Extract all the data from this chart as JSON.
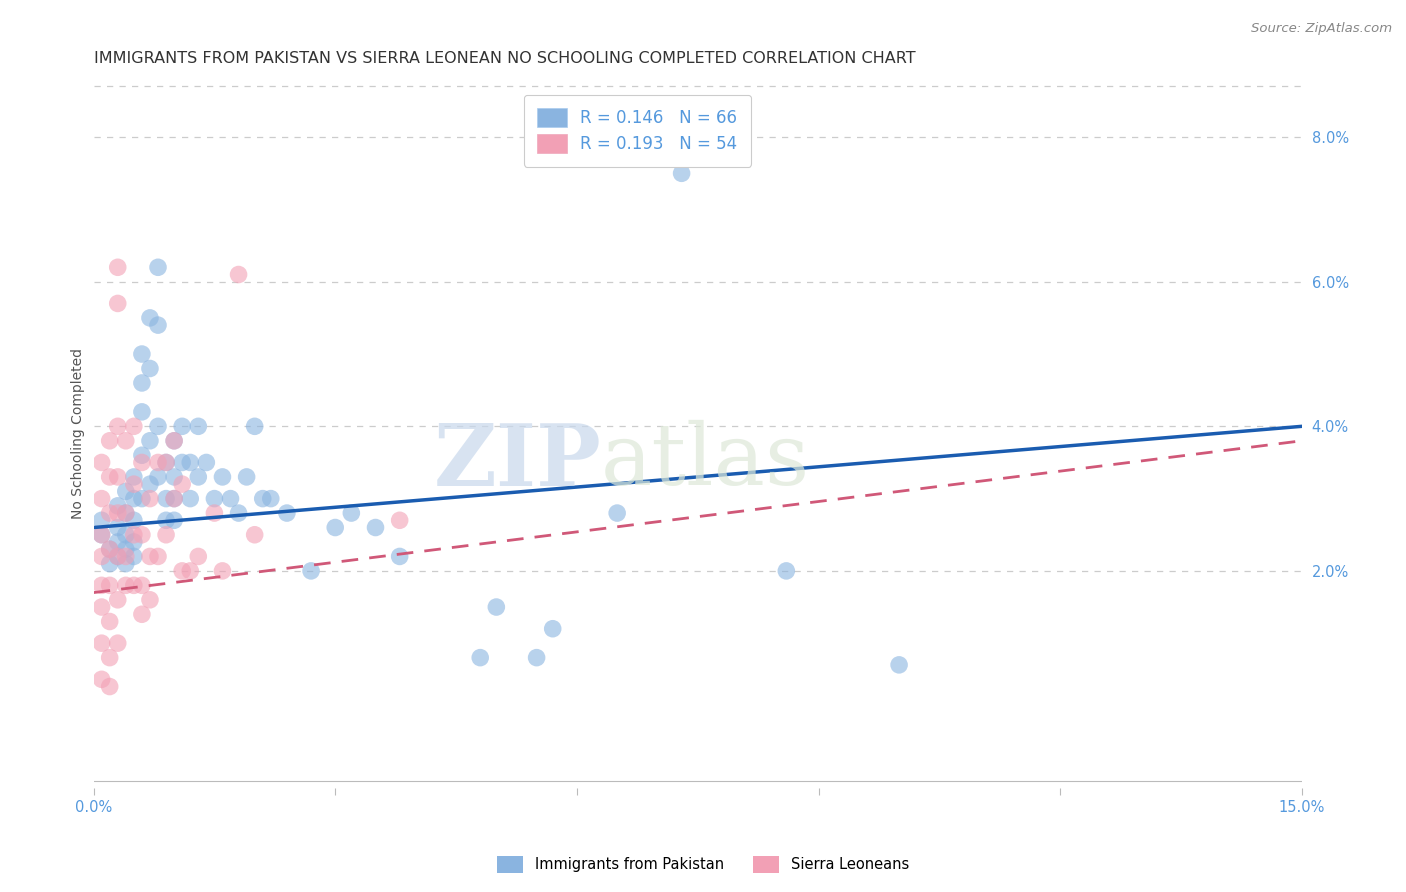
{
  "title": "IMMIGRANTS FROM PAKISTAN VS SIERRA LEONEAN NO SCHOOLING COMPLETED CORRELATION CHART",
  "source": "Source: ZipAtlas.com",
  "ylabel": "No Schooling Completed",
  "xlim": [
    0.0,
    0.15
  ],
  "ylim": [
    -0.01,
    0.088
  ],
  "right_yticks": [
    0.02,
    0.04,
    0.06,
    0.08
  ],
  "right_yticklabels": [
    "2.0%",
    "4.0%",
    "6.0%",
    "8.0%"
  ],
  "xticks": [
    0.0,
    0.03,
    0.06,
    0.09,
    0.12,
    0.15
  ],
  "xticklabels": [
    "0.0%",
    "",
    "",
    "",
    "",
    "15.0%"
  ],
  "blue_scatter": [
    [
      0.001,
      0.027
    ],
    [
      0.001,
      0.025
    ],
    [
      0.002,
      0.023
    ],
    [
      0.002,
      0.021
    ],
    [
      0.003,
      0.029
    ],
    [
      0.003,
      0.026
    ],
    [
      0.003,
      0.024
    ],
    [
      0.003,
      0.022
    ],
    [
      0.004,
      0.031
    ],
    [
      0.004,
      0.028
    ],
    [
      0.004,
      0.025
    ],
    [
      0.004,
      0.023
    ],
    [
      0.004,
      0.021
    ],
    [
      0.005,
      0.033
    ],
    [
      0.005,
      0.03
    ],
    [
      0.005,
      0.027
    ],
    [
      0.005,
      0.024
    ],
    [
      0.005,
      0.022
    ],
    [
      0.006,
      0.05
    ],
    [
      0.006,
      0.046
    ],
    [
      0.006,
      0.042
    ],
    [
      0.006,
      0.036
    ],
    [
      0.006,
      0.03
    ],
    [
      0.007,
      0.055
    ],
    [
      0.007,
      0.048
    ],
    [
      0.007,
      0.038
    ],
    [
      0.007,
      0.032
    ],
    [
      0.008,
      0.062
    ],
    [
      0.008,
      0.054
    ],
    [
      0.008,
      0.04
    ],
    [
      0.008,
      0.033
    ],
    [
      0.009,
      0.035
    ],
    [
      0.009,
      0.03
    ],
    [
      0.009,
      0.027
    ],
    [
      0.01,
      0.038
    ],
    [
      0.01,
      0.033
    ],
    [
      0.01,
      0.03
    ],
    [
      0.01,
      0.027
    ],
    [
      0.011,
      0.04
    ],
    [
      0.011,
      0.035
    ],
    [
      0.012,
      0.035
    ],
    [
      0.012,
      0.03
    ],
    [
      0.013,
      0.04
    ],
    [
      0.013,
      0.033
    ],
    [
      0.014,
      0.035
    ],
    [
      0.015,
      0.03
    ],
    [
      0.016,
      0.033
    ],
    [
      0.017,
      0.03
    ],
    [
      0.018,
      0.028
    ],
    [
      0.019,
      0.033
    ],
    [
      0.02,
      0.04
    ],
    [
      0.021,
      0.03
    ],
    [
      0.022,
      0.03
    ],
    [
      0.024,
      0.028
    ],
    [
      0.027,
      0.02
    ],
    [
      0.03,
      0.026
    ],
    [
      0.032,
      0.028
    ],
    [
      0.035,
      0.026
    ],
    [
      0.038,
      0.022
    ],
    [
      0.05,
      0.015
    ],
    [
      0.048,
      0.008
    ],
    [
      0.065,
      0.028
    ],
    [
      0.073,
      0.075
    ],
    [
      0.086,
      0.02
    ],
    [
      0.1,
      0.007
    ],
    [
      0.055,
      0.008
    ],
    [
      0.057,
      0.012
    ]
  ],
  "pink_scatter": [
    [
      0.001,
      0.035
    ],
    [
      0.001,
      0.03
    ],
    [
      0.001,
      0.025
    ],
    [
      0.001,
      0.022
    ],
    [
      0.001,
      0.018
    ],
    [
      0.001,
      0.015
    ],
    [
      0.001,
      0.01
    ],
    [
      0.001,
      0.005
    ],
    [
      0.002,
      0.038
    ],
    [
      0.002,
      0.033
    ],
    [
      0.002,
      0.028
    ],
    [
      0.002,
      0.023
    ],
    [
      0.002,
      0.018
    ],
    [
      0.002,
      0.013
    ],
    [
      0.002,
      0.008
    ],
    [
      0.002,
      0.004
    ],
    [
      0.003,
      0.062
    ],
    [
      0.003,
      0.057
    ],
    [
      0.003,
      0.04
    ],
    [
      0.003,
      0.033
    ],
    [
      0.003,
      0.028
    ],
    [
      0.003,
      0.022
    ],
    [
      0.003,
      0.016
    ],
    [
      0.003,
      0.01
    ],
    [
      0.004,
      0.038
    ],
    [
      0.004,
      0.028
    ],
    [
      0.004,
      0.022
    ],
    [
      0.004,
      0.018
    ],
    [
      0.005,
      0.04
    ],
    [
      0.005,
      0.032
    ],
    [
      0.005,
      0.025
    ],
    [
      0.005,
      0.018
    ],
    [
      0.006,
      0.035
    ],
    [
      0.006,
      0.025
    ],
    [
      0.006,
      0.018
    ],
    [
      0.006,
      0.014
    ],
    [
      0.007,
      0.03
    ],
    [
      0.007,
      0.022
    ],
    [
      0.007,
      0.016
    ],
    [
      0.008,
      0.035
    ],
    [
      0.008,
      0.022
    ],
    [
      0.009,
      0.035
    ],
    [
      0.009,
      0.025
    ],
    [
      0.01,
      0.038
    ],
    [
      0.01,
      0.03
    ],
    [
      0.011,
      0.032
    ],
    [
      0.011,
      0.02
    ],
    [
      0.012,
      0.02
    ],
    [
      0.013,
      0.022
    ],
    [
      0.015,
      0.028
    ],
    [
      0.016,
      0.02
    ],
    [
      0.018,
      0.061
    ],
    [
      0.02,
      0.025
    ],
    [
      0.038,
      0.027
    ]
  ],
  "blue_line_x": [
    0.0,
    0.15
  ],
  "blue_line_y": [
    0.026,
    0.04
  ],
  "pink_line_x": [
    0.0,
    0.15
  ],
  "pink_line_y": [
    0.017,
    0.038
  ],
  "scatter_color_blue": "#8ab4e0",
  "scatter_color_pink": "#f2a0b5",
  "line_color_blue": "#1a5cb0",
  "line_color_pink": "#d05878",
  "watermark_zip": "ZIP",
  "watermark_atlas": "atlas",
  "background_color": "#ffffff",
  "grid_color": "#cccccc",
  "title_color": "#333333",
  "axis_color": "#5599dd",
  "title_fontsize": 11.5,
  "label_fontsize": 10,
  "tick_fontsize": 10.5,
  "source_fontsize": 9.5
}
